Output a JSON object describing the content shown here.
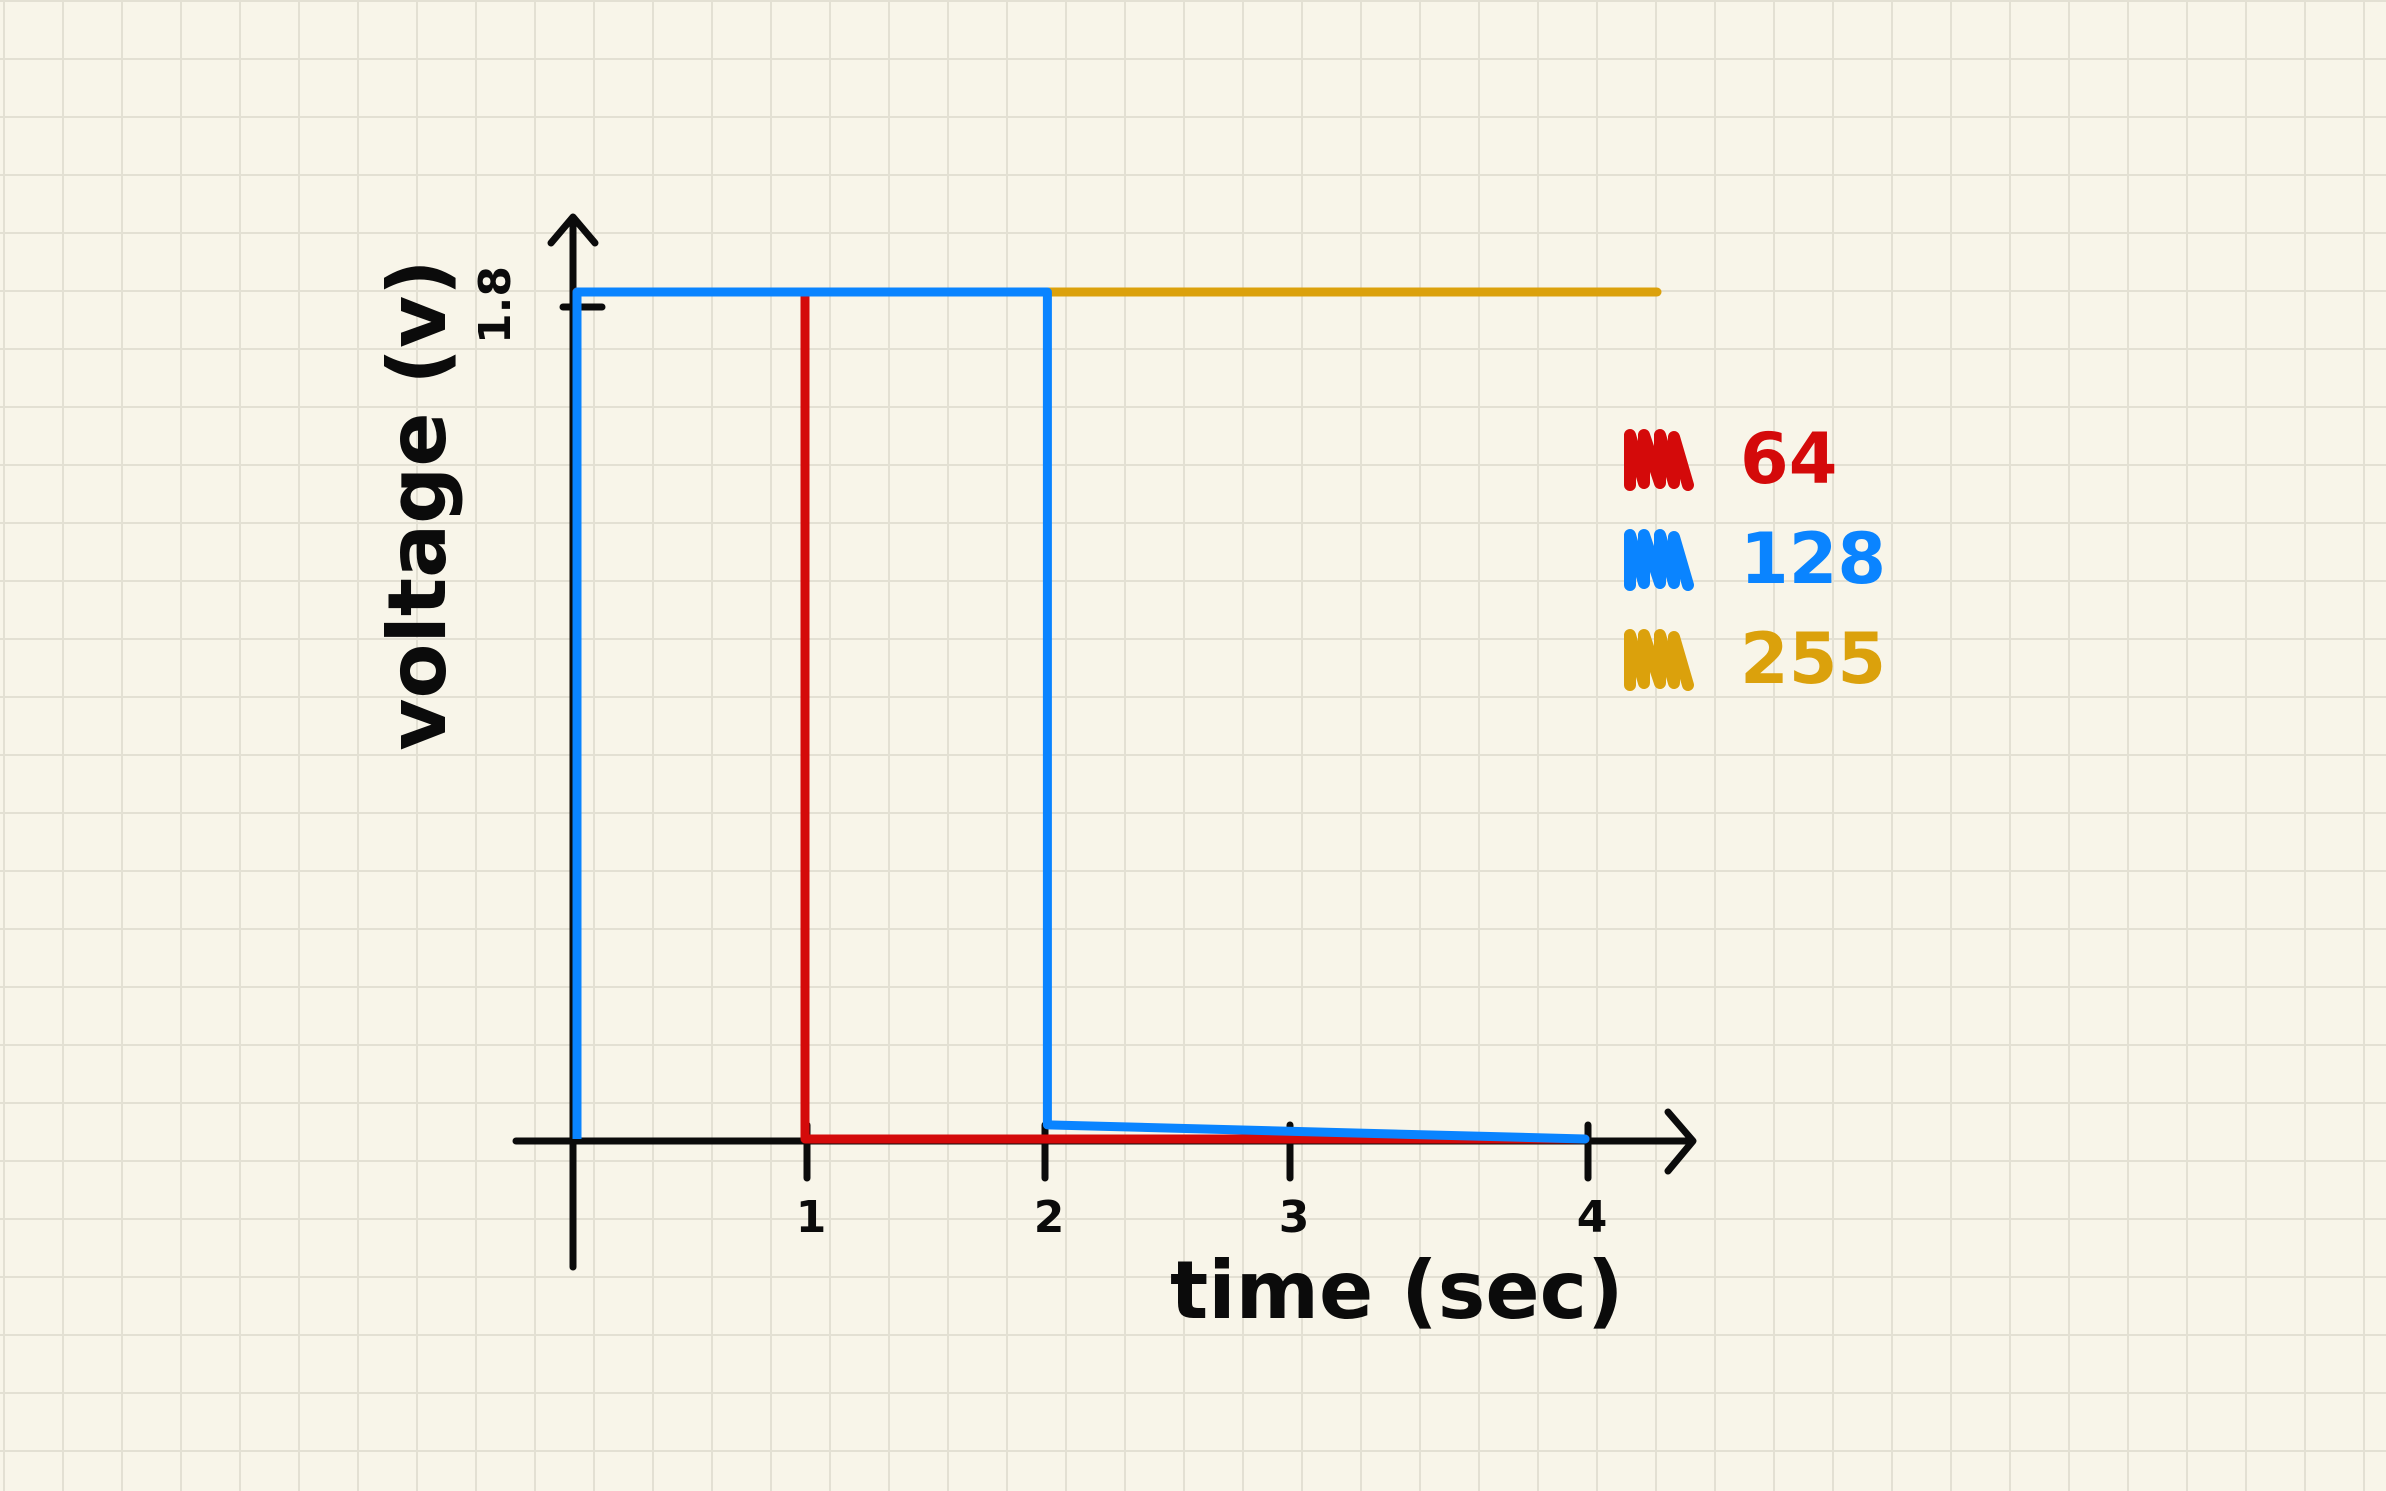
{
  "chart_data": {
    "type": "line",
    "step": true,
    "xlabel": "time (sec)",
    "ylabel": "voltage (v)",
    "x_ticks": [
      "1",
      "2",
      "3",
      "4"
    ],
    "y_ticks": [
      "1.8"
    ],
    "xlim": [
      0,
      4.2
    ],
    "ylim": [
      0,
      1.8
    ],
    "grid": true,
    "legend_position": "right",
    "series": [
      {
        "name": "64",
        "color": "#d40a0a",
        "x": [
          0,
          0.95,
          0.95,
          4.2
        ],
        "y": [
          1.8,
          1.8,
          0,
          0
        ]
      },
      {
        "name": "128",
        "color": "#0a84ff",
        "x": [
          0,
          1.96,
          1.96,
          4.2
        ],
        "y": [
          1.8,
          1.8,
          0.03,
          0
        ]
      },
      {
        "name": "255",
        "color": "#dba10c",
        "x": [
          0,
          4.5
        ],
        "y": [
          1.8,
          1.8
        ]
      }
    ]
  }
}
